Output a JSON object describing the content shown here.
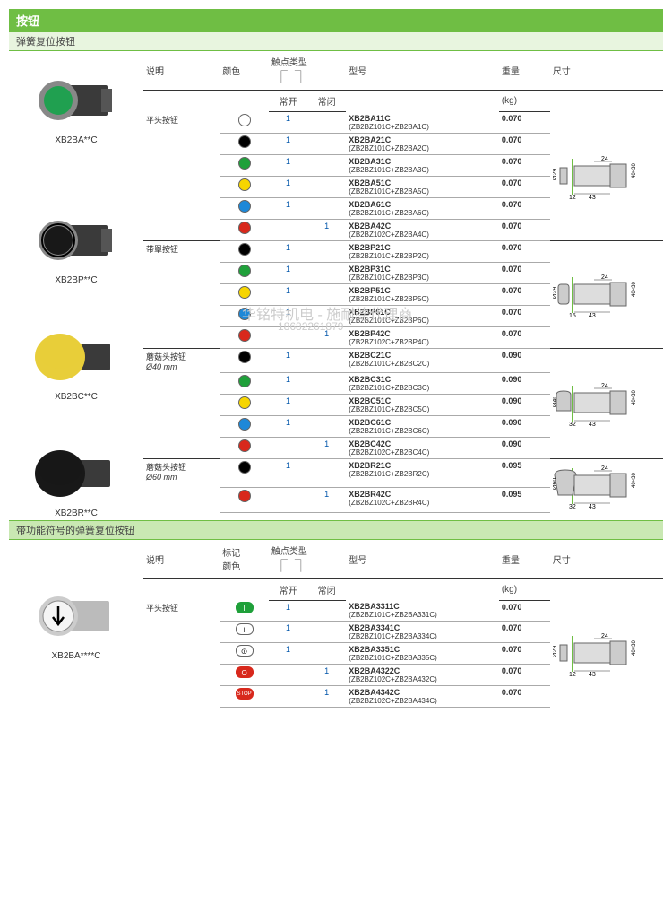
{
  "section1": {
    "title": "按钮",
    "subtitle": "弹簧复位按钮",
    "headers": {
      "desc": "说明",
      "color": "颜色",
      "contact_type": "触点类型",
      "model": "型号",
      "weight": "重量",
      "dim": "尺寸",
      "nc": "常开",
      "no": "常闭",
      "kg": "(kg)"
    },
    "groups": [
      {
        "desc": "平头按钮",
        "code": "XB2BA**C",
        "dim_labels": {
          "d": "Ø29",
          "a": "24",
          "b": "12",
          "c": "43",
          "h": "40×30"
        },
        "rows": [
          {
            "color": "#ffffff",
            "nc": "1",
            "no": "",
            "model": "XB2BA11C",
            "sub": "(ZB2BZ101C+ZB2BA1C)",
            "wt": "0.070"
          },
          {
            "color": "#000000",
            "nc": "1",
            "no": "",
            "model": "XB2BA21C",
            "sub": "(ZB2BZ101C+ZB2BA2C)",
            "wt": "0.070"
          },
          {
            "color": "#1fa03a",
            "nc": "1",
            "no": "",
            "model": "XB2BA31C",
            "sub": "(ZB2BZ101C+ZB2BA3C)",
            "wt": "0.070"
          },
          {
            "color": "#f6d500",
            "nc": "1",
            "no": "",
            "model": "XB2BA51C",
            "sub": "(ZB2BZ101C+ZB2BA5C)",
            "wt": "0.070"
          },
          {
            "color": "#1e88d8",
            "nc": "1",
            "no": "",
            "model": "XB2BA61C",
            "sub": "(ZB2BZ101C+ZB2BA6C)",
            "wt": "0.070"
          },
          {
            "color": "#d8281c",
            "nc": "",
            "no": "1",
            "model": "XB2BA42C",
            "sub": "(ZB2BZ102C+ZB2BA4C)",
            "wt": "0.070"
          }
        ]
      },
      {
        "desc": "带罩按钮",
        "code": "XB2BP**C",
        "dim_labels": {
          "d": "Ø29",
          "a": "24",
          "b": "15",
          "c": "43",
          "h": "40×30"
        },
        "rows": [
          {
            "color": "#000000",
            "nc": "1",
            "no": "",
            "model": "XB2BP21C",
            "sub": "(ZB2BZ101C+ZB2BP2C)",
            "wt": "0.070"
          },
          {
            "color": "#1fa03a",
            "nc": "1",
            "no": "",
            "model": "XB2BP31C",
            "sub": "(ZB2BZ101C+ZB2BP3C)",
            "wt": "0.070"
          },
          {
            "color": "#f6d500",
            "nc": "1",
            "no": "",
            "model": "XB2BP51C",
            "sub": "(ZB2BZ101C+ZB2BP5C)",
            "wt": "0.070"
          },
          {
            "color": "#1e88d8",
            "nc": "1",
            "no": "",
            "model": "XB2BP61C",
            "sub": "(ZB2BZ101C+ZB2BP6C)",
            "wt": "0.070"
          },
          {
            "color": "#d8281c",
            "nc": "",
            "no": "1",
            "model": "XB2BP42C",
            "sub": "(ZB2BZ102C+ZB2BP4C)",
            "wt": "0.070"
          }
        ]
      },
      {
        "desc": "蘑菇头按钮",
        "desc2": "Ø40 mm",
        "code": "XB2BC**C",
        "dim_labels": {
          "d": "Ø40",
          "a": "24",
          "b": "32",
          "c": "43",
          "h": "40×30"
        },
        "rows": [
          {
            "color": "#000000",
            "nc": "1",
            "no": "",
            "model": "XB2BC21C",
            "sub": "(ZB2BZ101C+ZB2BC2C)",
            "wt": "0.090"
          },
          {
            "color": "#1fa03a",
            "nc": "1",
            "no": "",
            "model": "XB2BC31C",
            "sub": "(ZB2BZ101C+ZB2BC3C)",
            "wt": "0.090"
          },
          {
            "color": "#f6d500",
            "nc": "1",
            "no": "",
            "model": "XB2BC51C",
            "sub": "(ZB2BZ101C+ZB2BC5C)",
            "wt": "0.090"
          },
          {
            "color": "#1e88d8",
            "nc": "1",
            "no": "",
            "model": "XB2BC61C",
            "sub": "(ZB2BZ101C+ZB2BC6C)",
            "wt": "0.090"
          },
          {
            "color": "#d8281c",
            "nc": "",
            "no": "1",
            "model": "XB2BC42C",
            "sub": "(ZB2BZ102C+ZB2BC4C)",
            "wt": "0.090"
          }
        ]
      },
      {
        "desc": "蘑菇头按钮",
        "desc2": "Ø60 mm",
        "code": "XB2BR**C",
        "dim_labels": {
          "d": "Ø60",
          "a": "24",
          "b": "32",
          "c": "43",
          "h": "40×30"
        },
        "rows": [
          {
            "color": "#000000",
            "nc": "1",
            "no": "",
            "model": "XB2BR21C",
            "sub": "(ZB2BZ101C+ZB2BR2C)",
            "wt": "0.095"
          },
          {
            "color": "#d8281c",
            "nc": "",
            "no": "1",
            "model": "XB2BR42C",
            "sub": "(ZB2BZ102C+ZB2BR4C)",
            "wt": "0.095"
          }
        ]
      }
    ]
  },
  "section2": {
    "subtitle": "带功能符号的弹簧复位按钮",
    "headers": {
      "desc": "说明",
      "color": "标记\n颜色",
      "contact_type": "触点类型",
      "model": "型号",
      "weight": "重量",
      "dim": "尺寸",
      "nc": "常开",
      "no": "常闭",
      "kg": "(kg)"
    },
    "group": {
      "desc": "平头按钮",
      "code": "XB2BA****C",
      "dim_labels": {
        "d": "Ø29",
        "a": "24",
        "b": "12",
        "c": "43",
        "h": "40×30"
      },
      "rows": [
        {
          "mark": "I",
          "mbg": "#1fa03a",
          "mfg": "#fff",
          "nc": "1",
          "no": "",
          "model": "XB2BA3311C",
          "sub": "(ZB2BZ101C+ZB2BA331C)",
          "wt": "0.070"
        },
        {
          "mark": "⏽",
          "mbg": "#fff",
          "mfg": "#000",
          "nc": "1",
          "no": "",
          "model": "XB2BA3341C",
          "sub": "(ZB2BZ101C+ZB2BA334C)",
          "wt": "0.070"
        },
        {
          "mark": "⏼",
          "mbg": "#fff",
          "mfg": "#000",
          "nc": "1",
          "no": "",
          "model": "XB2BA3351C",
          "sub": "(ZB2BZ101C+ZB2BA335C)",
          "wt": "0.070"
        },
        {
          "mark": "O",
          "mbg": "#d8281c",
          "mfg": "#fff",
          "nc": "",
          "no": "1",
          "model": "XB2BA4322C",
          "sub": "(ZB2BZ102C+ZB2BA432C)",
          "wt": "0.070"
        },
        {
          "mark": "STOP",
          "mbg": "#d8281c",
          "mfg": "#fff",
          "nc": "",
          "no": "1",
          "model": "XB2BA4342C",
          "sub": "(ZB2BZ102C+ZB2BA434C)",
          "wt": "0.070"
        }
      ]
    }
  },
  "watermark": {
    "l1": "华铭特机电 - 施耐德代理商",
    "l2": "18682261879"
  },
  "product_images": {
    "green_btn": {
      "knob": "#20a050",
      "body": "#444"
    },
    "black_btn": {
      "knob": "#181818",
      "body": "#444"
    },
    "yellow_mush": {
      "knob": "#e8ce3a",
      "body": "#444"
    },
    "black_mush": {
      "knob": "#181818",
      "body": "#444"
    },
    "white_arrow": {
      "knob": "#f5f5f5",
      "body": "#bbb"
    }
  }
}
